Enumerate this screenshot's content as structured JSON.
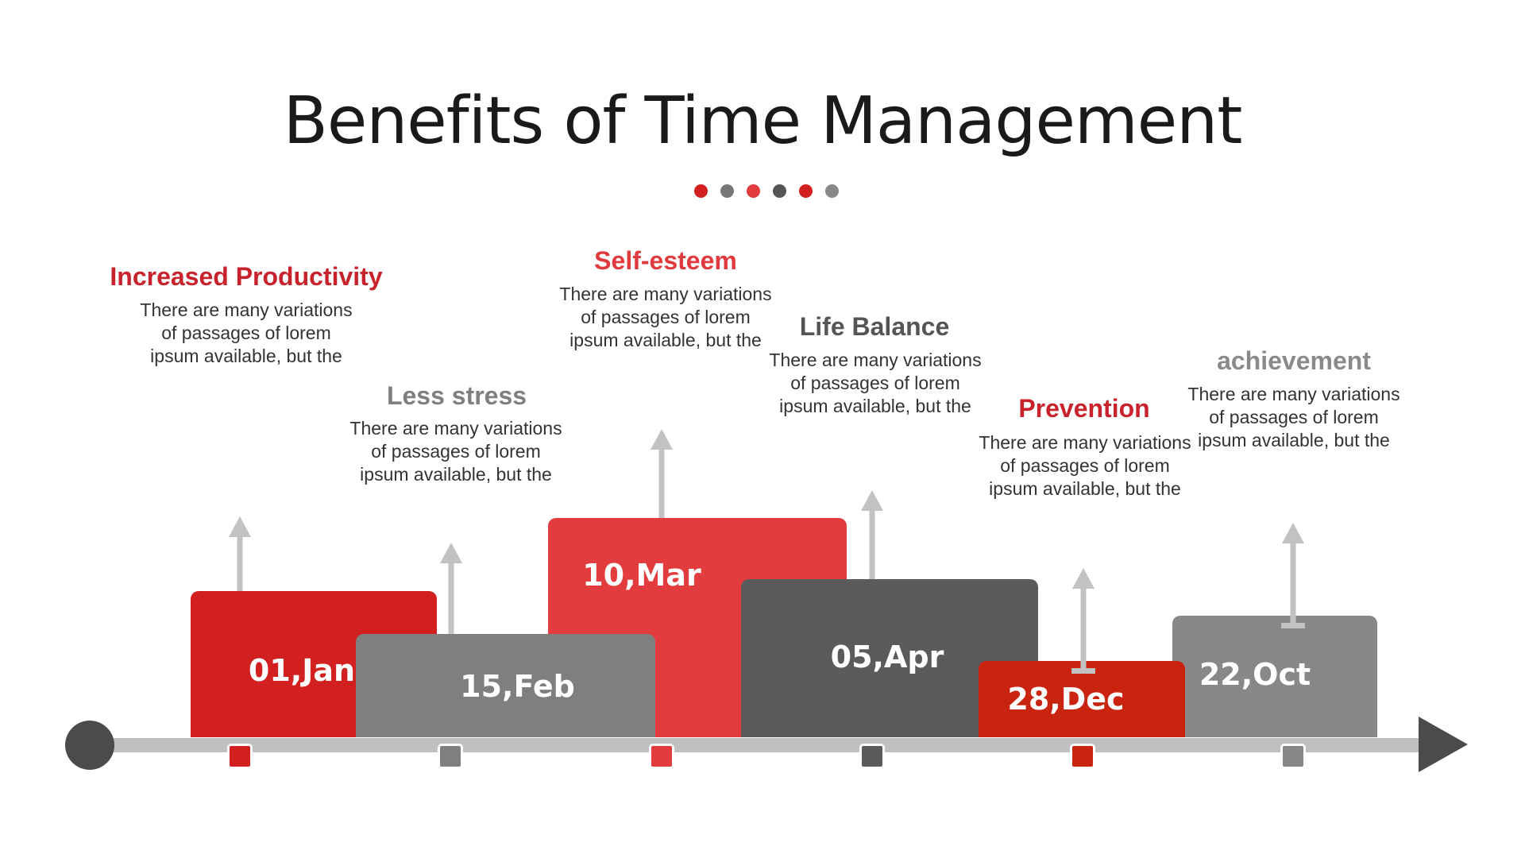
{
  "title": "Benefits of Time Management",
  "colors": {
    "red": "#d21f1f",
    "red_light": "#e23c3e",
    "red_dark": "#c9240f",
    "gray": "#7f7f7f",
    "gray_dark": "#5b5b5b",
    "gray_light": "#888888",
    "axis": "#c0c0c0",
    "axis_cap": "#4d4a4e"
  },
  "dots": [
    "#d21f1f",
    "#777777",
    "#e23c3e",
    "#555555",
    "#d21f1f",
    "#888888"
  ],
  "milestones": [
    {
      "heading": "Increased Productivity",
      "heading_color": "#c8232c",
      "description": "There are many variations of passages of lorem ipsum available, but the",
      "date": "01,Jan",
      "block_color": "#d21f1f",
      "marker_color": "#d21f1f"
    },
    {
      "heading": "Less stress",
      "heading_color": "#7f7f7f",
      "description": "There are many variations of passages of lorem ipsum available, but the",
      "date": "15,Feb",
      "block_color": "#7f7f7f",
      "marker_color": "#7f7f7f"
    },
    {
      "heading": "Self-esteem",
      "heading_color": "#e03a3e",
      "description": "There are many variations of passages of lorem ipsum available, but the",
      "date": "10,Mar",
      "block_color": "#e23c3e",
      "marker_color": "#e23c3e"
    },
    {
      "heading": "Life Balance",
      "heading_color": "#555555",
      "description": "There are many variations of passages of lorem ipsum available, but the",
      "date": "05,Apr",
      "block_color": "#5b5b5b",
      "marker_color": "#5b5b5b"
    },
    {
      "heading": "Prevention",
      "heading_color": "#c8232c",
      "description": "There are many variations of passages of lorem ipsum available, but the",
      "date": "28,Dec",
      "block_color": "#c9240f",
      "marker_color": "#c9240f"
    },
    {
      "heading": "achievement",
      "heading_color": "#8a8a8a",
      "description": "There are many variations of passages of lorem ipsum available, but the",
      "date": "22,Oct",
      "block_color": "#888888",
      "marker_color": "#888888"
    }
  ]
}
